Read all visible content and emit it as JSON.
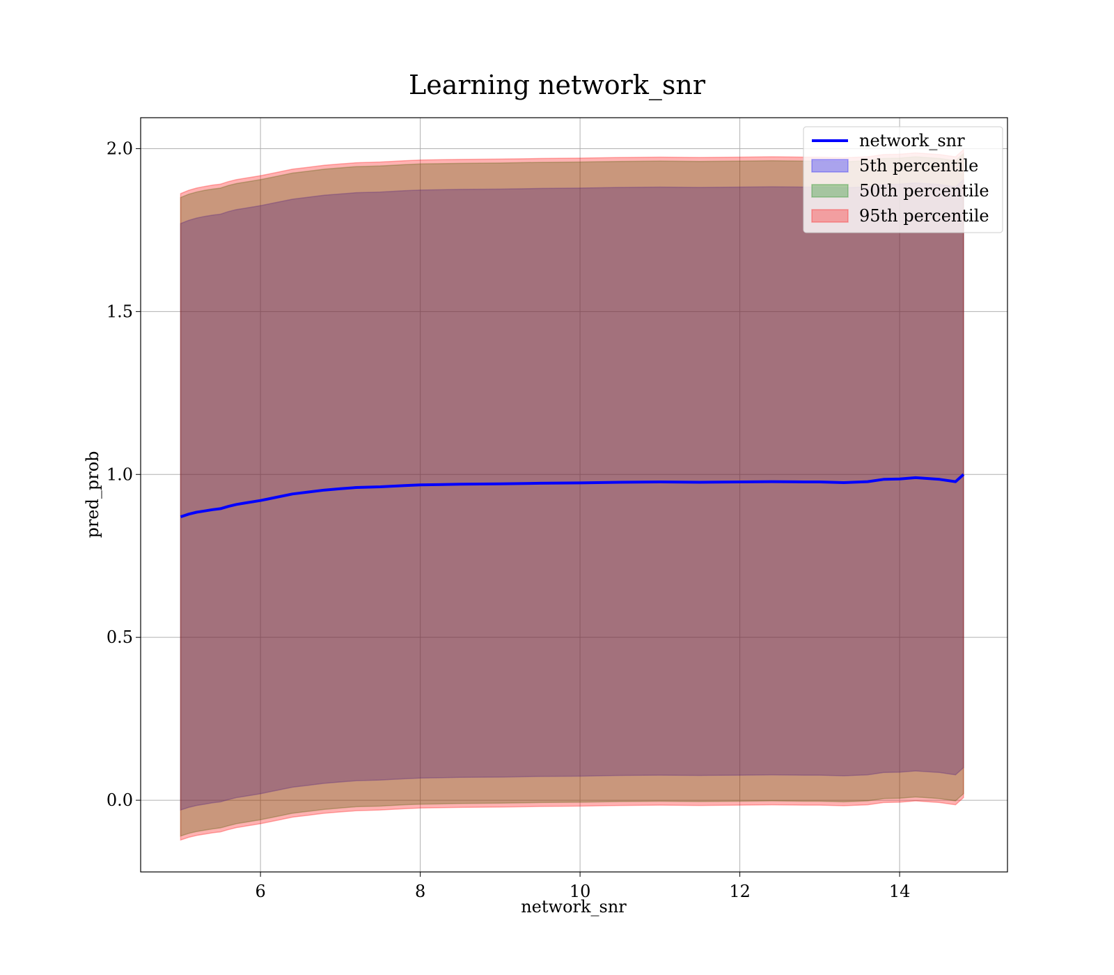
{
  "chart_data": {
    "type": "area",
    "title": "Learning network_snr",
    "xlabel": "network_snr",
    "ylabel": "pred_prob",
    "xlim": [
      4.5,
      15.35
    ],
    "ylim": [
      -0.22,
      2.095
    ],
    "xticks": [
      6,
      8,
      10,
      12,
      14
    ],
    "xtick_labels": [
      "6",
      "8",
      "10",
      "12",
      "14"
    ],
    "yticks": [
      0.0,
      0.5,
      1.0,
      1.5,
      2.0
    ],
    "ytick_labels": [
      "0.0",
      "0.5",
      "1.0",
      "1.5",
      "2.0"
    ],
    "grid": true,
    "legend_position": "upper right",
    "x": [
      5.0,
      5.1,
      5.2,
      5.3,
      5.4,
      5.5,
      5.6,
      5.7,
      5.8,
      6.0,
      6.2,
      6.4,
      6.6,
      6.8,
      7.0,
      7.2,
      7.5,
      7.8,
      8.0,
      8.5,
      9.0,
      9.5,
      10.0,
      10.5,
      11.0,
      11.5,
      12.0,
      12.4,
      12.8,
      13.0,
      13.3,
      13.6,
      13.8,
      14.0,
      14.2,
      14.5,
      14.7,
      14.8
    ],
    "series": [
      {
        "name": "network_snr",
        "kind": "line",
        "color": "#0000ff",
        "values": [
          0.87,
          0.878,
          0.884,
          0.888,
          0.892,
          0.895,
          0.902,
          0.908,
          0.912,
          0.92,
          0.93,
          0.94,
          0.946,
          0.952,
          0.956,
          0.96,
          0.962,
          0.966,
          0.968,
          0.97,
          0.971,
          0.973,
          0.974,
          0.976,
          0.977,
          0.976,
          0.977,
          0.978,
          0.977,
          0.977,
          0.975,
          0.978,
          0.985,
          0.986,
          0.99,
          0.985,
          0.978,
          1.0
        ]
      },
      {
        "name": "5th percentile",
        "kind": "band",
        "color": "#0000ff",
        "upper": [
          1.77,
          1.78,
          1.787,
          1.792,
          1.796,
          1.799,
          1.807,
          1.813,
          1.817,
          1.825,
          1.835,
          1.845,
          1.851,
          1.857,
          1.861,
          1.865,
          1.867,
          1.871,
          1.873,
          1.875,
          1.876,
          1.878,
          1.879,
          1.881,
          1.882,
          1.881,
          1.882,
          1.883,
          1.882,
          1.882,
          1.88,
          1.883,
          1.89,
          1.891,
          1.895,
          1.89,
          1.883,
          1.905
        ],
        "lower": [
          -0.03,
          -0.022,
          -0.016,
          -0.012,
          -0.008,
          -0.005,
          0.002,
          0.008,
          0.012,
          0.02,
          0.03,
          0.04,
          0.046,
          0.052,
          0.056,
          0.06,
          0.062,
          0.066,
          0.068,
          0.07,
          0.071,
          0.073,
          0.074,
          0.076,
          0.077,
          0.076,
          0.077,
          0.078,
          0.077,
          0.077,
          0.075,
          0.078,
          0.085,
          0.086,
          0.09,
          0.085,
          0.078,
          0.1
        ]
      },
      {
        "name": "50th percentile",
        "kind": "band",
        "color": "#008000",
        "upper": [
          1.85,
          1.86,
          1.867,
          1.872,
          1.876,
          1.879,
          1.887,
          1.893,
          1.897,
          1.905,
          1.915,
          1.925,
          1.931,
          1.937,
          1.941,
          1.945,
          1.947,
          1.951,
          1.953,
          1.955,
          1.956,
          1.958,
          1.959,
          1.961,
          1.962,
          1.961,
          1.962,
          1.963,
          1.962,
          1.962,
          1.96,
          1.963,
          1.97,
          1.971,
          1.975,
          1.97,
          1.963,
          1.985
        ],
        "lower": [
          -0.11,
          -0.102,
          -0.096,
          -0.092,
          -0.088,
          -0.085,
          -0.078,
          -0.072,
          -0.068,
          -0.06,
          -0.05,
          -0.04,
          -0.034,
          -0.028,
          -0.024,
          -0.02,
          -0.018,
          -0.014,
          -0.012,
          -0.01,
          -0.009,
          -0.007,
          -0.006,
          -0.004,
          -0.003,
          -0.004,
          -0.003,
          -0.002,
          -0.003,
          -0.003,
          -0.005,
          -0.002,
          0.005,
          0.006,
          0.01,
          0.005,
          -0.002,
          0.02
        ]
      },
      {
        "name": "95th percentile",
        "kind": "band",
        "color": "#ff0000",
        "upper": [
          1.862,
          1.872,
          1.879,
          1.884,
          1.888,
          1.891,
          1.899,
          1.905,
          1.909,
          1.917,
          1.927,
          1.937,
          1.943,
          1.949,
          1.953,
          1.957,
          1.959,
          1.963,
          1.965,
          1.967,
          1.968,
          1.97,
          1.971,
          1.973,
          1.974,
          1.973,
          1.974,
          1.975,
          1.974,
          1.974,
          1.972,
          1.975,
          1.982,
          1.983,
          1.987,
          1.982,
          1.975,
          1.997
        ],
        "lower": [
          -0.122,
          -0.114,
          -0.108,
          -0.104,
          -0.1,
          -0.097,
          -0.09,
          -0.084,
          -0.08,
          -0.072,
          -0.062,
          -0.052,
          -0.046,
          -0.04,
          -0.036,
          -0.032,
          -0.03,
          -0.026,
          -0.024,
          -0.022,
          -0.021,
          -0.019,
          -0.018,
          -0.016,
          -0.015,
          -0.016,
          -0.015,
          -0.014,
          -0.015,
          -0.015,
          -0.017,
          -0.014,
          -0.007,
          -0.006,
          -0.002,
          -0.007,
          -0.014,
          0.008
        ]
      }
    ]
  }
}
